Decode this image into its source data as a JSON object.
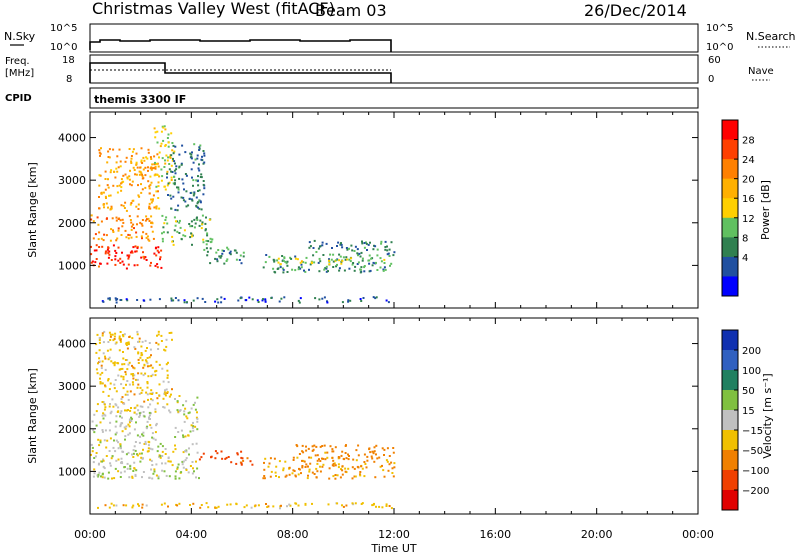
{
  "header": {
    "title": "Christmas Valley West (fitACF)",
    "beam": "Beam 03",
    "date": "26/Dec/2014"
  },
  "panels": {
    "nsky": {
      "label": "N.Sky",
      "ticks": [
        "10^5",
        "10^0"
      ],
      "right_label": "N.Search",
      "right_ticks": [
        "10^5",
        "10^0"
      ]
    },
    "freq": {
      "label_line1": "Freq.",
      "label_line2": "[MHz]",
      "ticks": [
        "18",
        "8"
      ],
      "right_label": "Nave",
      "right_ticks": [
        "60",
        "0"
      ]
    },
    "cpid": {
      "label": "CPID",
      "text": "themis 3300 IF"
    }
  },
  "colorbars": {
    "power": {
      "label": "Power [dB]",
      "ticks": [
        "28",
        "24",
        "20",
        "16",
        "12",
        "8",
        "4"
      ],
      "colors": [
        "#ff0000",
        "#ff4000",
        "#ff8000",
        "#ffb000",
        "#ffd000",
        "#60c060",
        "#308050",
        "#2050a0",
        "#0000ff"
      ]
    },
    "velocity": {
      "label": "Velocity [m s⁻¹]",
      "ticks": [
        "200",
        "100",
        "50",
        "15",
        "−15",
        "−50",
        "−100",
        "−200"
      ],
      "colors": [
        "#1030b0",
        "#3060c0",
        "#208060",
        "#80c040",
        "#c0c0c0",
        "#f0c000",
        "#f08000",
        "#f04000",
        "#e00000"
      ]
    }
  },
  "chart_data": [
    {
      "type": "scatter",
      "name": "power",
      "xlabel": "Time UT",
      "ylabel": "Slant Range [km]",
      "xlim": [
        0,
        24
      ],
      "ylim": [
        0,
        4600
      ],
      "x_ticks": [
        "00:00",
        "04:00",
        "08:00",
        "12:00",
        "16:00",
        "20:00",
        "00:00"
      ],
      "y_ticks": [
        1000,
        2000,
        3000,
        4000
      ],
      "regions": [
        {
          "t0": 0.0,
          "t1": 2.9,
          "r0": 950,
          "r1": 1500,
          "level": 28
        },
        {
          "t0": 0.0,
          "t1": 2.5,
          "r0": 1600,
          "r1": 2200,
          "level": 22
        },
        {
          "t0": 0.3,
          "t1": 2.7,
          "r0": 2300,
          "r1": 3800,
          "level": 20
        },
        {
          "t0": 2.5,
          "t1": 3.3,
          "r0": 2800,
          "r1": 4300,
          "level": 14
        },
        {
          "t0": 2.8,
          "t1": 4.8,
          "r0": 1500,
          "r1": 2200,
          "level": 10
        },
        {
          "t0": 3.0,
          "t1": 4.5,
          "r0": 2300,
          "r1": 3900,
          "level": 6
        },
        {
          "t0": 4.4,
          "t1": 6.2,
          "r0": 1050,
          "r1": 1450,
          "level": 8
        },
        {
          "t0": 6.8,
          "t1": 12.0,
          "r0": 850,
          "r1": 1300,
          "level": 8
        },
        {
          "t0": 7.2,
          "t1": 11.6,
          "r0": 1050,
          "r1": 1200,
          "level": 14
        },
        {
          "t0": 8.5,
          "t1": 12.0,
          "r0": 1300,
          "r1": 1600,
          "level": 6
        },
        {
          "t0": 0.0,
          "t1": 12.0,
          "r0": 150,
          "r1": 280,
          "level": 4
        }
      ]
    },
    {
      "type": "scatter",
      "name": "velocity",
      "xlabel": "Time UT",
      "ylabel": "Slant Range [km]",
      "xlim": [
        0,
        24
      ],
      "ylim": [
        0,
        4600
      ],
      "x_ticks": [
        "00:00",
        "04:00",
        "08:00",
        "12:00",
        "16:00",
        "20:00",
        "00:00"
      ],
      "y_ticks": [
        1000,
        2000,
        3000,
        4000
      ],
      "regions": [
        {
          "t0": 0.0,
          "t1": 4.3,
          "r0": 850,
          "r1": 1700,
          "level": 0
        },
        {
          "t0": 0.0,
          "t1": 2.6,
          "r0": 1700,
          "r1": 2400,
          "level": 0
        },
        {
          "t0": 0.2,
          "t1": 3.2,
          "r0": 2400,
          "r1": 4300,
          "level": -30
        },
        {
          "t0": 3.3,
          "t1": 4.2,
          "r0": 1800,
          "r1": 2800,
          "level": 0
        },
        {
          "t0": 4.3,
          "t1": 6.0,
          "r0": 1300,
          "r1": 1500,
          "level": -150
        },
        {
          "t0": 5.5,
          "t1": 6.5,
          "r0": 1150,
          "r1": 1350,
          "level": -120
        },
        {
          "t0": 6.8,
          "t1": 12.0,
          "r0": 850,
          "r1": 1350,
          "level": -60
        },
        {
          "t0": 8.0,
          "t1": 12.0,
          "r0": 1300,
          "r1": 1650,
          "level": -80
        },
        {
          "t0": 0.0,
          "t1": 12.0,
          "r0": 150,
          "r1": 280,
          "level": -40
        }
      ]
    }
  ]
}
